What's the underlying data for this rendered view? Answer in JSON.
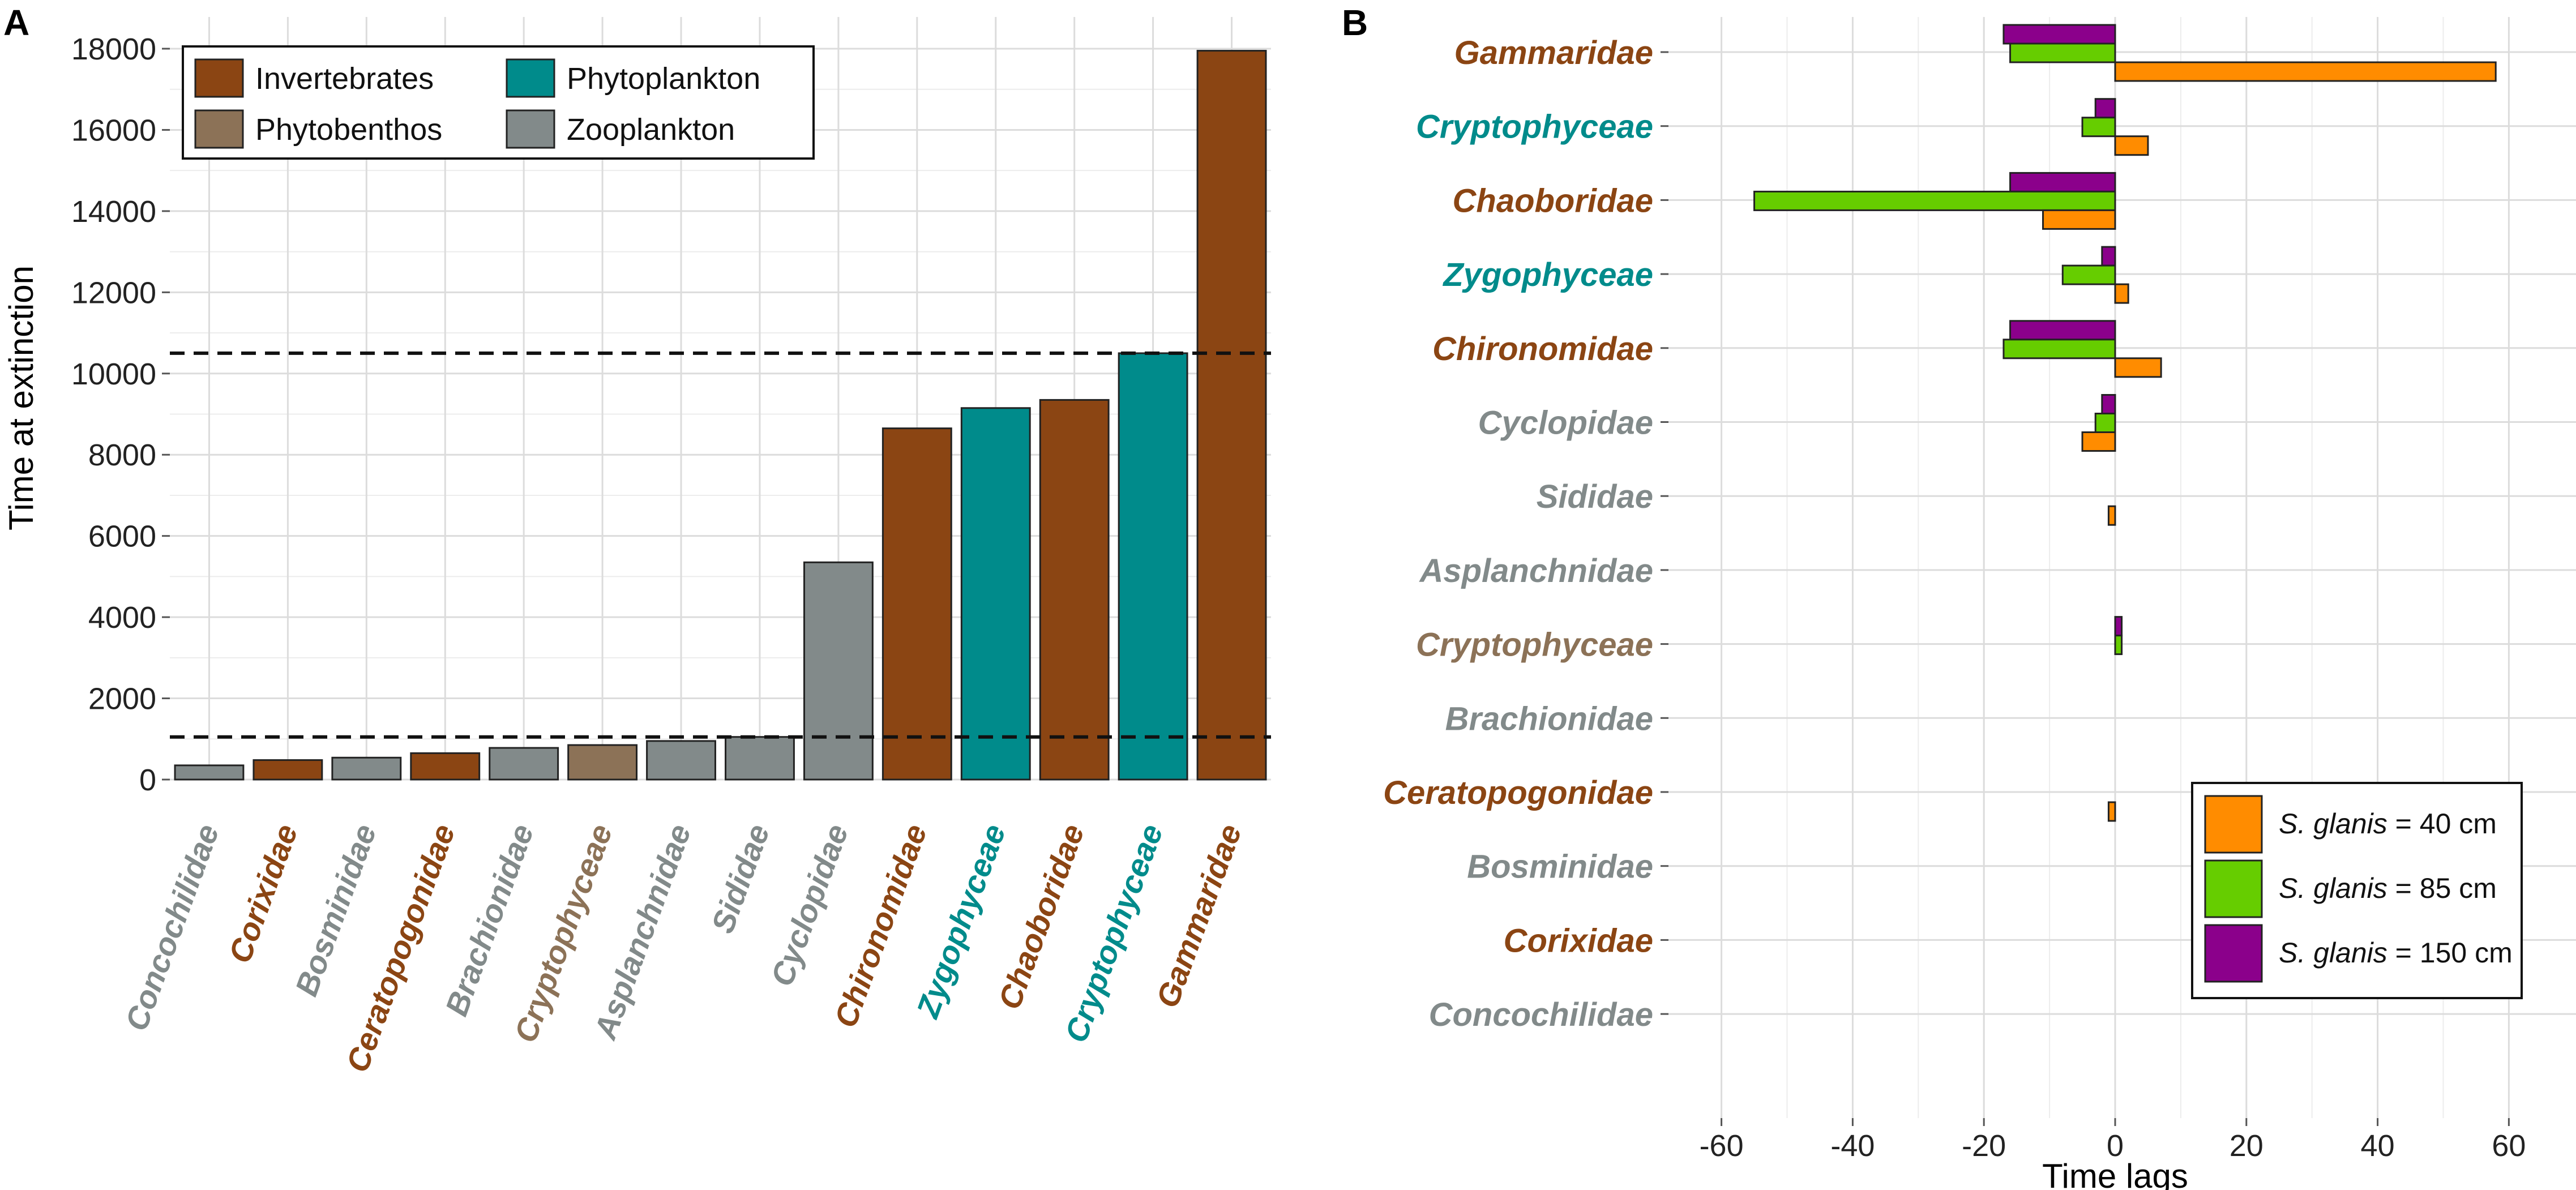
{
  "colors": {
    "Invertebrates": "#8B4513",
    "Phytobenthos": "#8C7257",
    "Phytoplankton": "#008B8B",
    "Zooplankton": "#828A8A",
    "grid": "#dcdcdc",
    "s40": "#FF8C00",
    "s85": "#66CD00",
    "s150": "#8B008B"
  },
  "chart_data": [
    {
      "type": "bar",
      "panel_label": "A",
      "ylabel": "Time at extinction",
      "ylim": [
        0,
        18000
      ],
      "yticks": [
        0,
        2000,
        4000,
        6000,
        8000,
        10000,
        12000,
        14000,
        16000,
        18000
      ],
      "hlines": [
        1050,
        10500
      ],
      "grid": true,
      "legend_position": "top-left",
      "legend": [
        {
          "label": "Invertebrates",
          "group": "Invertebrates"
        },
        {
          "label": "Phytoplankton",
          "group": "Phytoplankton"
        },
        {
          "label": "Phytobenthos",
          "group": "Phytobenthos"
        },
        {
          "label": "Zooplankton",
          "group": "Zooplankton"
        }
      ],
      "categories": [
        "Concochilidae",
        "Corixidae",
        "Bosminidae",
        "Ceratopogonidae",
        "Brachionidae",
        "Cryptophyceae",
        "Asplanchnidae",
        "Sididae",
        "Cyclopidae",
        "Chironomidae",
        "Zygophyceae",
        "Chaoboridae",
        "Cryptophyceae",
        "Gammaridae"
      ],
      "groups": [
        "Zooplankton",
        "Invertebrates",
        "Zooplankton",
        "Invertebrates",
        "Zooplankton",
        "Phytobenthos",
        "Zooplankton",
        "Zooplankton",
        "Zooplankton",
        "Invertebrates",
        "Phytoplankton",
        "Invertebrates",
        "Phytoplankton",
        "Invertebrates"
      ],
      "values": [
        350,
        480,
        540,
        650,
        780,
        850,
        950,
        1050,
        5350,
        8650,
        9150,
        9350,
        10500,
        17950
      ]
    },
    {
      "type": "bar",
      "orientation": "horizontal",
      "panel_label": "B",
      "xlabel": "Time lags",
      "xlim": [
        -68,
        68
      ],
      "xticks": [
        -60,
        -40,
        -20,
        0,
        20,
        40,
        60
      ],
      "grid": true,
      "legend_position": "bottom-right",
      "categories": [
        "Gammaridae",
        "Cryptophyceae",
        "Chaoboridae",
        "Zygophyceae",
        "Chironomidae",
        "Cyclopidae",
        "Sididae",
        "Asplanchnidae",
        "Cryptophyceae",
        "Brachionidae",
        "Ceratopogonidae",
        "Bosminidae",
        "Corixidae",
        "Concochilidae"
      ],
      "groups": [
        "Invertebrates",
        "Phytoplankton",
        "Invertebrates",
        "Phytoplankton",
        "Invertebrates",
        "Zooplankton",
        "Zooplankton",
        "Zooplankton",
        "Phytobenthos",
        "Zooplankton",
        "Invertebrates",
        "Zooplankton",
        "Invertebrates",
        "Zooplankton"
      ],
      "series": [
        {
          "name_italic": "S. glanis",
          "name_rest": " = 150 cm",
          "color_key": "s150",
          "values": [
            -17,
            -3,
            -16,
            -2,
            -16,
            -2,
            0,
            0,
            1,
            0,
            0,
            0,
            0,
            0
          ]
        },
        {
          "name_italic": "S. glanis",
          "name_rest": " = 85 cm",
          "color_key": "s85",
          "values": [
            -16,
            -5,
            -55,
            -8,
            -17,
            -3,
            0,
            0,
            1,
            0,
            0,
            0,
            0,
            0
          ]
        },
        {
          "name_italic": "S. glanis",
          "name_rest": " = 40 cm",
          "color_key": "s40",
          "values": [
            58,
            5,
            -11,
            2,
            7,
            -5,
            -1,
            0,
            0,
            0,
            -1,
            0,
            0,
            0
          ]
        }
      ],
      "legend_order": [
        2,
        1,
        0
      ]
    }
  ]
}
